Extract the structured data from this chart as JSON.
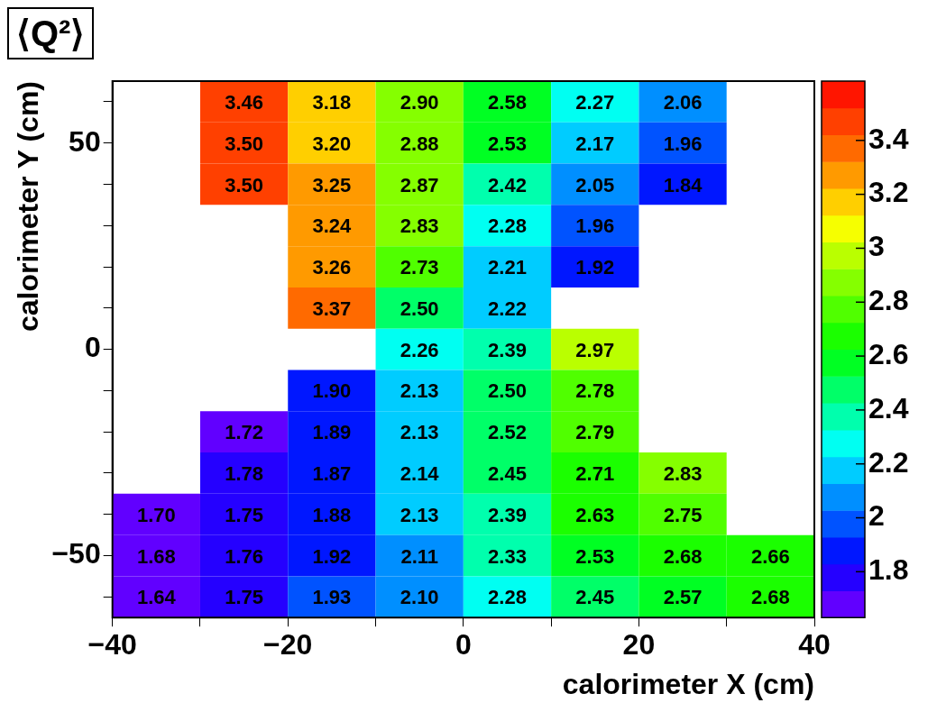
{
  "chart_data": {
    "type": "heatmap",
    "title": "⟨Q²⟩",
    "xlabel": "calorimeter X (cm)",
    "ylabel": "calorimeter Y (cm)",
    "x": [
      -35,
      -25,
      -15,
      -5,
      5,
      15,
      25,
      35
    ],
    "y": [
      60,
      50,
      40,
      30,
      20,
      10,
      0,
      -10,
      -20,
      -30,
      -40,
      -50,
      -60
    ],
    "xlim": [
      -40,
      40
    ],
    "xticks": [
      -40,
      {
        "value": -30,
        "label": null
      },
      -20,
      {
        "value": -10,
        "label": null
      },
      0,
      {
        "value": 10,
        "label": null
      },
      20,
      {
        "value": 30,
        "label": null
      },
      40
    ],
    "ylim": [
      -65,
      65
    ],
    "yticks": [
      {
        "value": -60,
        "label": null
      },
      -50,
      {
        "value": -40,
        "label": null
      },
      {
        "value": -30,
        "label": null
      },
      {
        "value": -20,
        "label": null
      },
      {
        "value": -10,
        "label": null
      },
      0,
      {
        "value": 10,
        "label": null
      },
      {
        "value": 20,
        "label": null
      },
      {
        "value": 30,
        "label": null
      },
      {
        "value": 40,
        "label": null
      },
      50,
      {
        "value": 60,
        "label": null
      }
    ],
    "cells": [
      [
        null,
        3.46,
        3.18,
        2.9,
        2.58,
        2.27,
        2.06,
        null
      ],
      [
        null,
        3.5,
        3.2,
        2.88,
        2.53,
        2.17,
        1.96,
        null
      ],
      [
        null,
        3.5,
        3.25,
        2.87,
        2.42,
        2.05,
        1.84,
        null
      ],
      [
        null,
        null,
        3.24,
        2.83,
        2.28,
        1.96,
        null,
        null
      ],
      [
        null,
        null,
        3.26,
        2.73,
        2.21,
        1.92,
        null,
        null
      ],
      [
        null,
        null,
        3.37,
        2.5,
        2.22,
        null,
        null,
        null
      ],
      [
        null,
        null,
        null,
        2.26,
        2.39,
        2.97,
        null,
        null
      ],
      [
        null,
        null,
        1.9,
        2.13,
        2.5,
        2.78,
        null,
        null
      ],
      [
        null,
        1.72,
        1.89,
        2.13,
        2.52,
        2.79,
        null,
        null
      ],
      [
        null,
        1.78,
        1.87,
        2.14,
        2.45,
        2.71,
        2.83,
        null
      ],
      [
        1.7,
        1.75,
        1.88,
        2.13,
        2.39,
        2.63,
        2.75,
        null
      ],
      [
        1.68,
        1.76,
        1.92,
        2.11,
        2.33,
        2.53,
        2.68,
        2.66
      ],
      [
        1.64,
        1.75,
        1.93,
        2.1,
        2.28,
        2.45,
        2.57,
        2.68
      ]
    ],
    "cell_labels": [
      [
        null,
        "3.46",
        "3.18",
        "2.90",
        "2.58",
        "2.27",
        "2.06",
        null
      ],
      [
        null,
        "3.50",
        "3.20",
        "2.88",
        "2.53",
        "2.17",
        "1.96",
        null
      ],
      [
        null,
        "3.50",
        "3.25",
        "2.87",
        "2.42",
        "2.05",
        "1.84",
        null
      ],
      [
        null,
        null,
        "3.24",
        "2.83",
        "2.28",
        "1.96",
        null,
        null
      ],
      [
        null,
        null,
        "3.26",
        "2.73",
        "2.21",
        "1.92",
        null,
        null
      ],
      [
        null,
        null,
        "3.37",
        "2.50",
        "2.22",
        null,
        null,
        null
      ],
      [
        null,
        null,
        null,
        "2.26",
        "2.39",
        "2.97",
        null,
        null
      ],
      [
        null,
        null,
        "1.90",
        "2.13",
        "2.50",
        "2.78",
        null,
        null
      ],
      [
        null,
        "1.72",
        "1.89",
        "2.13",
        "2.52",
        "2.79",
        null,
        null
      ],
      [
        null,
        "1.78",
        "1.87",
        "2.14",
        "2.45",
        "2.71",
        "2.83",
        null
      ],
      [
        "1.70",
        "1.75",
        "1.88",
        "2.13",
        "2.39",
        "2.63",
        "2.75",
        null
      ],
      [
        "1.68",
        "1.76",
        "1.92",
        "2.11",
        "2.33",
        "2.53",
        "2.68",
        "2.66"
      ],
      [
        "1.64",
        "1.75",
        "1.93",
        "2.10",
        "2.28",
        "2.45",
        "2.57",
        "2.68"
      ]
    ],
    "clim": [
      1.63,
      3.62
    ],
    "cticks": [
      1.8,
      2,
      2.2,
      2.4,
      2.6,
      2.8,
      3,
      3.2,
      3.4
    ],
    "grid": false
  }
}
